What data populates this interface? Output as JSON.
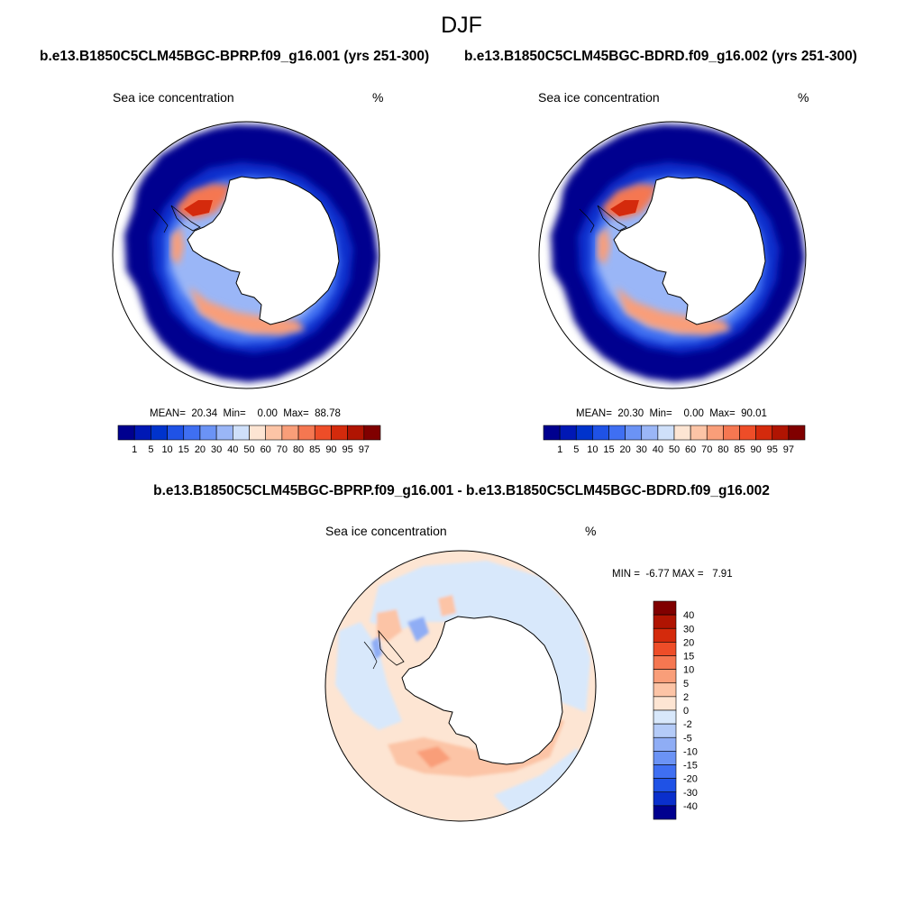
{
  "figure": {
    "title": "DJF",
    "difference_title": "b.e13.B1850C5CLM45BGC-BPRP.f09_g16.001 - b.e13.B1850C5CLM45BGC-BDRD.f09_g16.002"
  },
  "panels": [
    {
      "run_title": "b.e13.B1850C5CLM45BGC-BPRP.f09_g16.001 (yrs 251-300)",
      "variable": "Sea ice concentration",
      "units": "%",
      "stats": "MEAN=  20.34  Min=    0.00  Max=  88.78"
    },
    {
      "run_title": "b.e13.B1850C5CLM45BGC-BDRD.f09_g16.002 (yrs 251-300)",
      "variable": "Sea ice concentration",
      "units": "%",
      "stats": "MEAN=  20.30  Min=    0.00  Max=  90.01"
    }
  ],
  "difference_panel": {
    "variable": "Sea ice concentration",
    "units": "%",
    "stats": "MIN =  -6.77 MAX =   7.91"
  },
  "colorbar_abs": {
    "labels": [
      "1",
      "5",
      "10",
      "15",
      "20",
      "30",
      "40",
      "50",
      "60",
      "70",
      "80",
      "85",
      "90",
      "95",
      "97"
    ],
    "colors": [
      "#00008f",
      "#0018b5",
      "#0033cc",
      "#1f52e6",
      "#3f6ff2",
      "#6b93f5",
      "#9ab6f7",
      "#cfe0fa",
      "#fde5d3",
      "#fcc4a6",
      "#f99e79",
      "#f57751",
      "#ee4d28",
      "#d42a0c",
      "#b01402",
      "#800000"
    ]
  },
  "colorbar_diff": {
    "labels": [
      "40",
      "30",
      "20",
      "15",
      "10",
      "5",
      "2",
      "0",
      "-2",
      "-5",
      "-10",
      "-15",
      "-20",
      "-30",
      "-40"
    ],
    "colors": [
      "#800000",
      "#b01402",
      "#d42a0c",
      "#ee4d28",
      "#f57751",
      "#f99e79",
      "#fcc4a6",
      "#fde5d3",
      "#d8e8fb",
      "#b4cbf8",
      "#8fadf5",
      "#6b93f5",
      "#3f6ff2",
      "#1f52e6",
      "#0a2fcc",
      "#00008f"
    ]
  },
  "map_colors": {
    "ocean_deep": "#00008f",
    "land": "#ffffff",
    "outline": "#000000"
  }
}
